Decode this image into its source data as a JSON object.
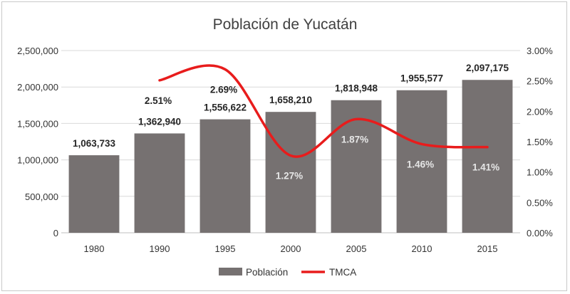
{
  "chart_data": {
    "type": "bar",
    "title": "Población de Yucatán",
    "categories": [
      "1980",
      "1990",
      "1995",
      "2000",
      "2005",
      "2010",
      "2015"
    ],
    "series": [
      {
        "name": "Población",
        "type": "bar",
        "axis": "left",
        "color": "#767171",
        "values": [
          1063733,
          1362940,
          1556622,
          1658210,
          1818948,
          1955577,
          2097175
        ],
        "labels": [
          "1,063,733",
          "1,362,940",
          "1,556,622",
          "1,658,210",
          "1,818,948",
          "1,955,577",
          "2,097,175"
        ]
      },
      {
        "name": "TMCA",
        "type": "line",
        "axis": "right",
        "color": "#e81c1c",
        "values": [
          null,
          2.51,
          2.69,
          1.27,
          1.87,
          1.46,
          1.41
        ],
        "labels": [
          "",
          "2.51%",
          "2.69%",
          "1.27%",
          "1.87%",
          "1.46%",
          "1.41%"
        ]
      }
    ],
    "y_left": {
      "min": 0,
      "max": 2500000,
      "ticks": [
        "0",
        "500,000",
        "1,000,000",
        "1,500,000",
        "2,000,000",
        "2,500,000"
      ]
    },
    "y_right": {
      "min": 0,
      "max": 3,
      "ticks": [
        "0.00%",
        "0.50%",
        "1.00%",
        "1.50%",
        "2.00%",
        "2.50%",
        "3.00%"
      ]
    },
    "grid": true,
    "legend": "bottom"
  }
}
